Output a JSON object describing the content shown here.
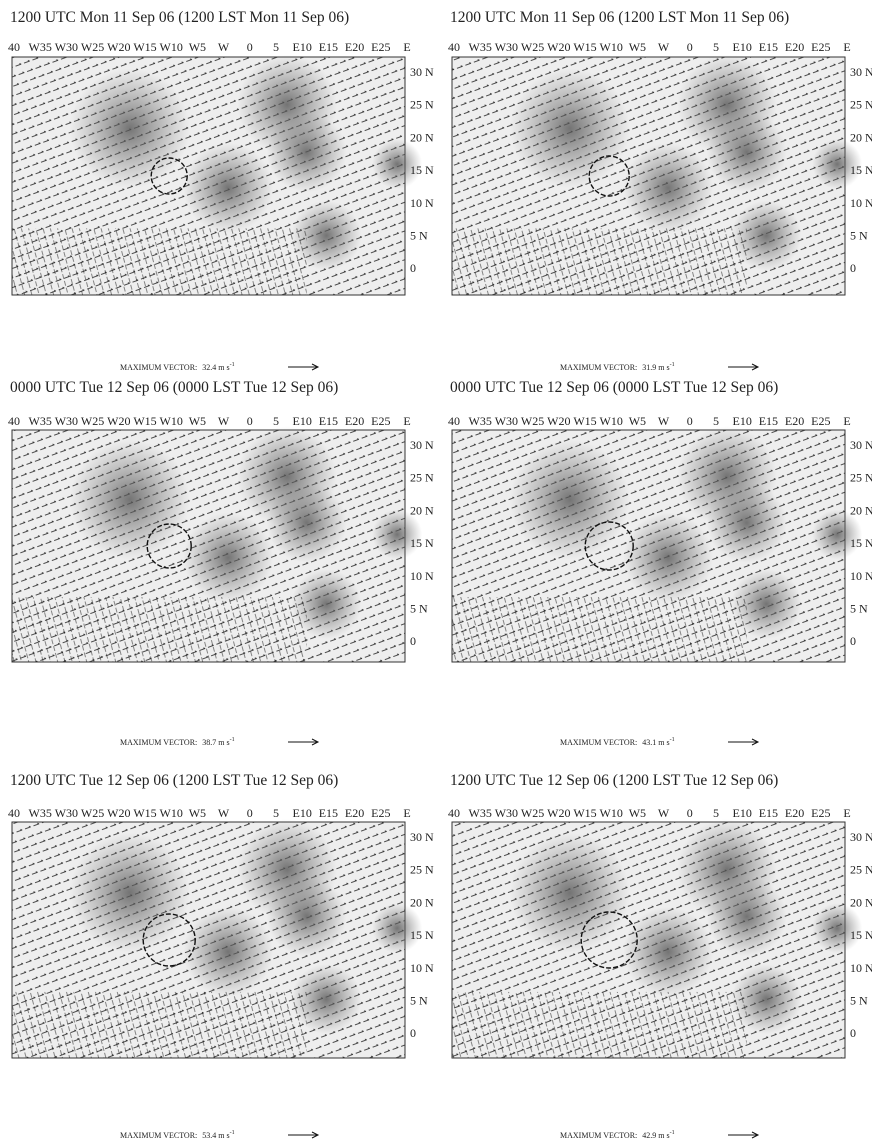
{
  "axes": {
    "lon_labels": [
      "40",
      "W35",
      "W30",
      "W25",
      "W20",
      "W15",
      "W10",
      "W5",
      "W",
      "0",
      "5",
      "E10",
      "E15",
      "E20",
      "E25",
      "E"
    ],
    "lat_labels": [
      "30 N",
      "25 N",
      "20 N",
      "15 N",
      "10 N",
      "5 N",
      "0"
    ]
  },
  "panels": [
    {
      "title": "1200 UTC Mon 11 Sep 06 (1200 LST Mon 11 Sep 06)",
      "max_vector": {
        "label": "MAXIMUM VECTOR:",
        "value": "32.4 m s",
        "exponent": "-1"
      }
    },
    {
      "title": "1200 UTC Mon 11 Sep 06 (1200 LST Mon 11 Sep 06)",
      "max_vector": {
        "label": "MAXIMUM VECTOR:",
        "value": "31.9 m s",
        "exponent": "-1"
      }
    },
    {
      "title": "0000 UTC Tue 12 Sep 06 (0000 LST Tue 12 Sep 06)",
      "max_vector": {
        "label": "MAXIMUM VECTOR:",
        "value": "38.7 m s",
        "exponent": "-1"
      }
    },
    {
      "title": "0000 UTC Tue 12 Sep 06 (0000 LST Tue 12 Sep 06)",
      "max_vector": {
        "label": "MAXIMUM VECTOR:",
        "value": "43.1 m s",
        "exponent": "-1"
      }
    },
    {
      "title": "1200 UTC Tue 12 Sep 06 (1200 LST Tue 12 Sep 06)",
      "max_vector": {
        "label": "MAXIMUM VECTOR:",
        "value": "53.4 m s",
        "exponent": "-1"
      }
    },
    {
      "title": "1200 UTC Tue 12 Sep 06 (1200 LST Tue 12 Sep 06)",
      "max_vector": {
        "label": "MAXIMUM VECTOR:",
        "value": "42.9 m s",
        "exponent": "-1"
      }
    }
  ]
}
